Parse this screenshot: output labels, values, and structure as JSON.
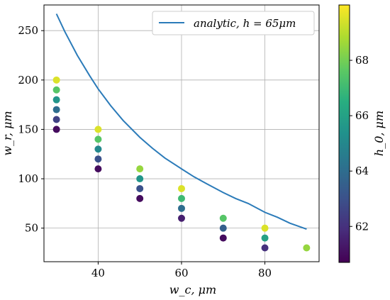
{
  "chart_data": {
    "type": "scatter",
    "xlabel": "w_c, μm",
    "ylabel": "w_r, μm",
    "xlim": [
      27,
      93
    ],
    "ylim": [
      16,
      276
    ],
    "xticks": [
      40,
      60,
      80
    ],
    "yticks": [
      50,
      100,
      150,
      200,
      250
    ],
    "grid": true,
    "legend": {
      "placement": "top-right",
      "label": "analytic, h = 65μm"
    },
    "line_color": "#2b7bb9",
    "analytic_curve": {
      "name": "analytic, h = 65μm",
      "x": [
        30,
        32,
        35,
        38,
        40,
        43,
        46,
        50,
        53,
        56,
        60,
        63,
        66,
        70,
        73,
        76,
        80,
        83,
        86,
        90
      ],
      "y": [
        267,
        249,
        225,
        204,
        191,
        174,
        159,
        142,
        131,
        121,
        110,
        102,
        95,
        86,
        80,
        75,
        66,
        61,
        55,
        49
      ]
    },
    "colorbar": {
      "label": "h_0, μm",
      "min": 60.7,
      "max": 70.0,
      "ticks": [
        62,
        64,
        66,
        68
      ],
      "colormap": "viridis"
    },
    "points": [
      {
        "x": 30,
        "y": 150,
        "h0": 61
      },
      {
        "x": 30,
        "y": 160,
        "h0": 62.5
      },
      {
        "x": 30,
        "y": 170,
        "h0": 64
      },
      {
        "x": 30,
        "y": 180,
        "h0": 65.5
      },
      {
        "x": 30,
        "y": 190,
        "h0": 67.5
      },
      {
        "x": 30,
        "y": 200,
        "h0": 69.5
      },
      {
        "x": 40,
        "y": 110,
        "h0": 61
      },
      {
        "x": 40,
        "y": 120,
        "h0": 63
      },
      {
        "x": 40,
        "y": 130,
        "h0": 65
      },
      {
        "x": 40,
        "y": 140,
        "h0": 67.5
      },
      {
        "x": 40,
        "y": 150,
        "h0": 69.5
      },
      {
        "x": 50,
        "y": 80,
        "h0": 61
      },
      {
        "x": 50,
        "y": 90,
        "h0": 63
      },
      {
        "x": 50,
        "y": 100,
        "h0": 65.5
      },
      {
        "x": 50,
        "y": 110,
        "h0": 68.5
      },
      {
        "x": 60,
        "y": 60,
        "h0": 61.5
      },
      {
        "x": 60,
        "y": 70,
        "h0": 64
      },
      {
        "x": 60,
        "y": 80,
        "h0": 67
      },
      {
        "x": 60,
        "y": 90,
        "h0": 69.5
      },
      {
        "x": 70,
        "y": 40,
        "h0": 61
      },
      {
        "x": 70,
        "y": 50,
        "h0": 63.5
      },
      {
        "x": 70,
        "y": 60,
        "h0": 67.5
      },
      {
        "x": 80,
        "y": 30,
        "h0": 62
      },
      {
        "x": 80,
        "y": 40,
        "h0": 66
      },
      {
        "x": 80,
        "y": 50,
        "h0": 69.5
      },
      {
        "x": 90,
        "y": 30,
        "h0": 68.5
      }
    ]
  }
}
